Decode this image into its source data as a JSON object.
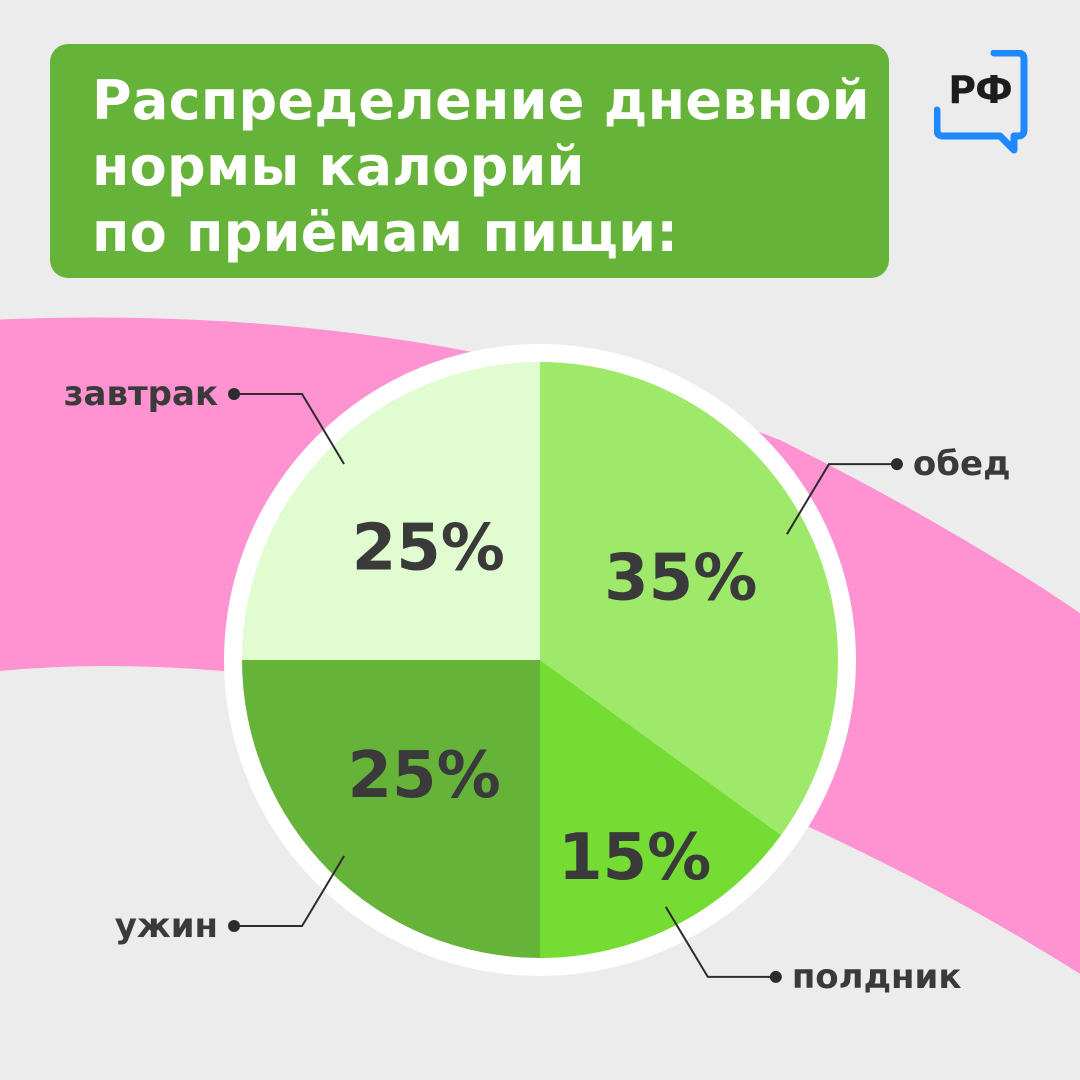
{
  "header": {
    "title_lines": [
      "Распределение дневной",
      "нормы калорий",
      "по приёмам пищи:"
    ],
    "logo_text": "РФ"
  },
  "colors": {
    "background": "#ececec",
    "title_box": "#66b33a",
    "band": "#ff92d0",
    "logo_blue": "#1e88ff",
    "label_text": "#3a3a3a"
  },
  "chart_data": {
    "type": "pie",
    "title": "Распределение дневной нормы калорий по приёмам пищи:",
    "slices": [
      {
        "label": "обед",
        "value": 35,
        "value_label": "35%",
        "color": "#9ee86a"
      },
      {
        "label": "полдник",
        "value": 15,
        "value_label": "15%",
        "color": "#74dc33"
      },
      {
        "label": "ужин",
        "value": 25,
        "value_label": "25%",
        "color": "#66b33a"
      },
      {
        "label": "завтрак",
        "value": 25,
        "value_label": "25%",
        "color": "#e0fcd0"
      }
    ],
    "start": "12 o'clock",
    "direction": "clockwise"
  }
}
